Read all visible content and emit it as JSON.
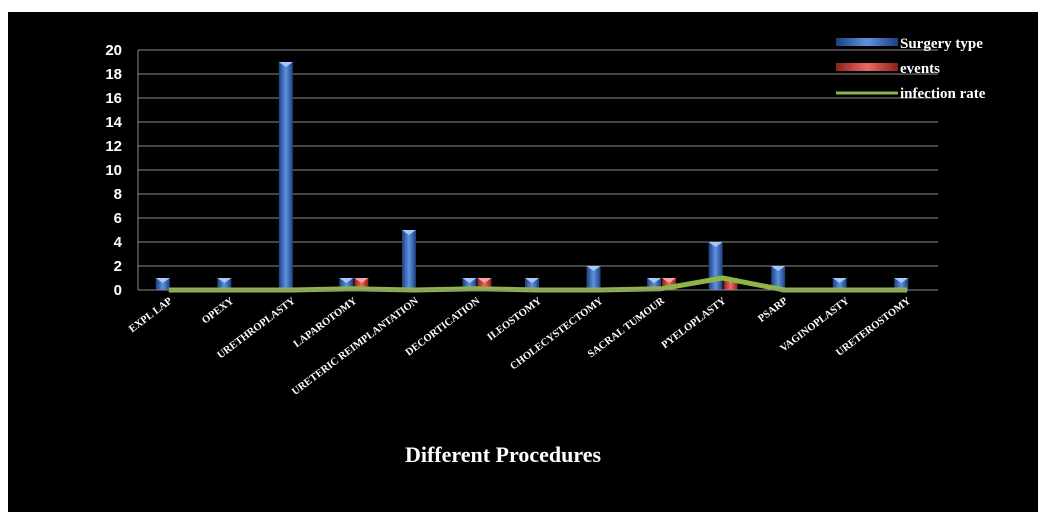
{
  "chart_data": {
    "type": "bar",
    "title": "",
    "xlabel": "Different Procedures",
    "ylabel": "",
    "ylim": [
      0,
      20
    ],
    "yticks": [
      0,
      2,
      4,
      6,
      8,
      10,
      12,
      14,
      16,
      18,
      20
    ],
    "grid": true,
    "legend_position": "top-right",
    "categories": [
      "EXPL LAP",
      "OPEXY",
      "URETHROPLASTY",
      "LAPAROTOMY",
      "URETERIC REIMPLANTATION",
      "DECORTICATION",
      "ILEOSTOMY",
      "CHOLECYSTECTOMY",
      "SACRAL TUMOUR",
      "PYELOPLASTY",
      "PSARP",
      "VAGINOPLASTY",
      "URETEROSTOMY"
    ],
    "series": [
      {
        "name": "Surgery type",
        "kind": "bar",
        "color": "#2e62b5",
        "values": [
          1,
          1,
          19,
          1,
          5,
          1,
          1,
          2,
          1,
          4,
          2,
          1,
          1
        ]
      },
      {
        "name": "events",
        "kind": "bar",
        "color": "#d03a35",
        "values": [
          0,
          0,
          0,
          1,
          0,
          1,
          0,
          0,
          1,
          1,
          0,
          0,
          0
        ]
      },
      {
        "name": "infection rate",
        "kind": "line",
        "color": "#8fb447",
        "values": [
          0,
          0,
          0,
          0.1,
          0,
          0.1,
          0,
          0,
          0.1,
          1,
          0,
          0,
          0
        ]
      }
    ]
  }
}
